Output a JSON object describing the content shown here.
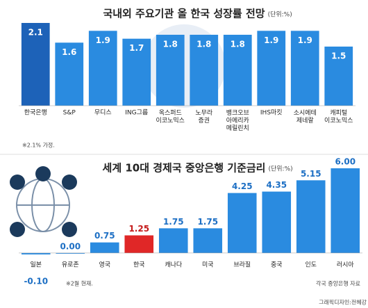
{
  "chart_data": [
    {
      "type": "bar",
      "title": "국내외 주요기관 올 한국 성장률 전망",
      "subtitle": "(단위:%)",
      "categories": [
        "한국은행",
        "S&P",
        "무디스",
        "ING그룹",
        "옥스퍼드\n이코노믹스",
        "노무라\n증권",
        "뱅크오브\n아메리카\n메릴린치",
        "IHS마킷",
        "소시에테\n제네랄",
        "캐피털\n이코노믹스"
      ],
      "values": [
        2.1,
        1.6,
        1.9,
        1.7,
        1.8,
        1.8,
        1.8,
        1.9,
        1.9,
        1.5
      ],
      "colors": [
        "#1d62b8",
        "#2a8be0",
        "#2a8be0",
        "#2a8be0",
        "#2a8be0",
        "#2a8be0",
        "#2a8be0",
        "#2a8be0",
        "#2a8be0",
        "#2a8be0"
      ],
      "ylim": [
        0,
        2.4
      ],
      "note": "※2.1% 가정."
    },
    {
      "type": "bar",
      "title": "세계 10대 경제국 중앙은행 기준금리",
      "subtitle": "(단위:%)",
      "categories": [
        "일본",
        "유로존",
        "영국",
        "한국",
        "캐나다",
        "미국",
        "브라질",
        "중국",
        "인도",
        "러시아"
      ],
      "values": [
        -0.1,
        0,
        0.75,
        1.25,
        1.75,
        1.75,
        4.25,
        4.35,
        5.15,
        6
      ],
      "value_labels": [
        "-0.10",
        "0.00",
        "0.75",
        "1.25",
        "1.75",
        "1.75",
        "4.25",
        "4.35",
        "5.15",
        "6.00"
      ],
      "colors": [
        "#2a8be0",
        "#2a8be0",
        "#2a8be0",
        "#e02727",
        "#2a8be0",
        "#2a8be0",
        "#2a8be0",
        "#2a8be0",
        "#2a8be0",
        "#2a8be0"
      ],
      "ylim": [
        -0.3,
        6.2
      ],
      "note": "※2월 현재.",
      "source": "각국 중앙은행 자료"
    }
  ],
  "credit": "그래픽디자인:전혜강"
}
